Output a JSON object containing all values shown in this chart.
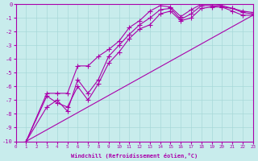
{
  "xlabel": "Windchill (Refroidissement éolien,°C)",
  "xlim": [
    0,
    23
  ],
  "ylim": [
    -10,
    0
  ],
  "xticks": [
    0,
    1,
    2,
    3,
    4,
    5,
    6,
    7,
    8,
    9,
    10,
    11,
    12,
    13,
    14,
    15,
    16,
    17,
    18,
    19,
    20,
    21,
    22,
    23
  ],
  "yticks": [
    0,
    -1,
    -2,
    -3,
    -4,
    -5,
    -6,
    -7,
    -8,
    -9,
    -10
  ],
  "background_color": "#c8ecec",
  "line_color": "#aa00aa",
  "grid_color": "#a8d8d8",
  "series1_x": [
    1,
    3,
    4,
    5,
    6,
    7,
    8,
    9,
    10,
    11,
    12,
    13,
    14,
    15,
    16,
    17,
    18,
    19,
    20,
    21,
    22,
    23
  ],
  "series1_y": [
    -10.0,
    -6.7,
    -7.2,
    -7.5,
    -6.0,
    -7.0,
    -5.8,
    -4.3,
    -3.5,
    -2.5,
    -1.8,
    -1.5,
    -0.7,
    -0.5,
    -1.2,
    -1.0,
    -0.3,
    -0.2,
    -0.2,
    -0.5,
    -0.8,
    -0.8
  ],
  "series2_x": [
    1,
    3,
    4,
    5,
    6,
    7,
    8,
    9,
    10,
    11,
    12,
    13,
    14,
    15,
    16,
    17,
    18,
    19,
    20,
    21,
    22,
    23
  ],
  "series2_y": [
    -10.0,
    -7.5,
    -7.0,
    -7.8,
    -5.5,
    -6.5,
    -5.5,
    -3.8,
    -3.0,
    -2.2,
    -1.5,
    -1.0,
    -0.4,
    -0.3,
    -1.1,
    -0.7,
    -0.1,
    -0.1,
    -0.2,
    -0.3,
    -0.6,
    -0.7
  ],
  "series3_x": [
    1,
    3,
    4,
    5,
    6,
    7,
    8,
    9,
    10,
    11,
    12,
    13,
    14,
    15,
    16,
    17,
    18,
    19,
    20,
    21,
    22,
    23
  ],
  "series3_y": [
    -10.0,
    -6.5,
    -6.5,
    -6.5,
    -4.5,
    -4.5,
    -3.8,
    -3.3,
    -2.7,
    -1.7,
    -1.2,
    -0.5,
    -0.1,
    -0.2,
    -0.9,
    -0.4,
    0.0,
    0.0,
    -0.1,
    -0.3,
    -0.5,
    -0.6
  ],
  "series4_x": [
    1,
    23
  ],
  "series4_y": [
    -10.0,
    -0.8
  ]
}
